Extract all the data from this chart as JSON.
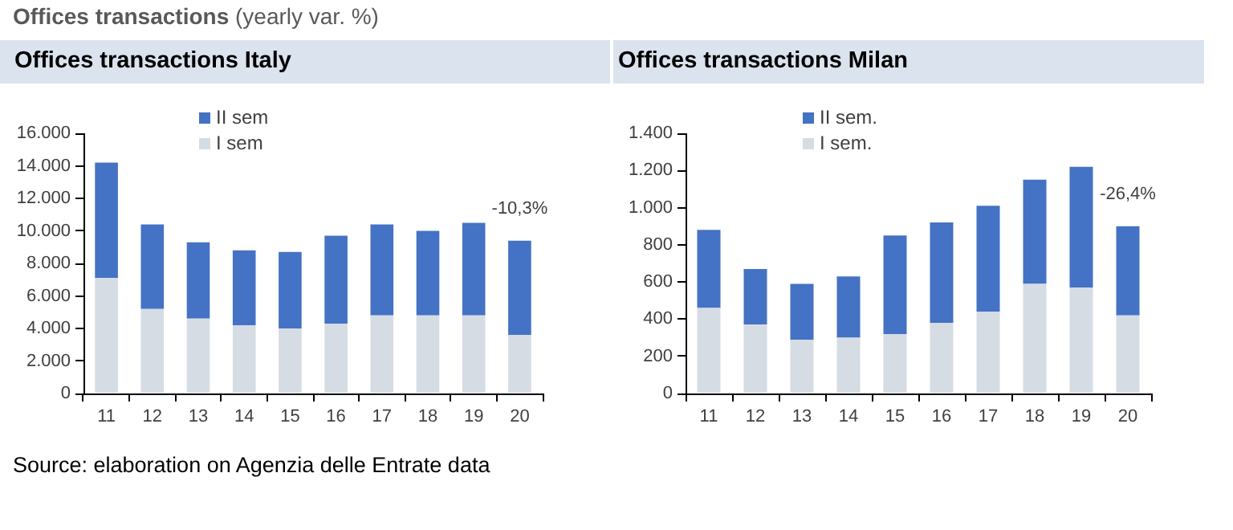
{
  "chart_data": [
    {
      "type": "other",
      "title": "Offices transactions",
      "subtitle": "(yearly var. %)",
      "annotations": [
        "Source: elaboration on Agenzia delle Entrate data"
      ]
    },
    {
      "type": "bar",
      "title": "Offices transactions Italy",
      "categories": [
        "11",
        "12",
        "13",
        "14",
        "15",
        "16",
        "17",
        "18",
        "19",
        "20"
      ],
      "stacked": true,
      "series": [
        {
          "name": "I sem",
          "color": "#d6dce4",
          "values": [
            7100,
            5200,
            4600,
            4200,
            4000,
            4300,
            4800,
            4800,
            4800,
            3600
          ]
        },
        {
          "name": "II sem",
          "color": "#4472c4",
          "values": [
            7100,
            5200,
            4700,
            4600,
            4700,
            5400,
            5600,
            5200,
            5700,
            5800
          ]
        }
      ],
      "ylim": [
        0,
        16000
      ],
      "yticks": [
        0,
        {
          "value": 2000,
          "label": "2.000"
        },
        {
          "value": 4000,
          "label": "4.000"
        },
        {
          "value": 6000,
          "label": "6.000"
        },
        {
          "value": 8000,
          "label": "8.000"
        },
        {
          "value": 10000,
          "label": "10.000"
        },
        {
          "value": 12000,
          "label": "12.000"
        },
        {
          "value": 14000,
          "label": "14.000"
        },
        {
          "value": 16000,
          "label": "16.000"
        }
      ],
      "legend": "top",
      "annotations": [
        "-10,3%"
      ]
    },
    {
      "type": "bar",
      "title": "Offices transactions Milan",
      "categories": [
        "11",
        "12",
        "13",
        "14",
        "15",
        "16",
        "17",
        "18",
        "19",
        "20"
      ],
      "stacked": true,
      "series": [
        {
          "name": "I sem.",
          "color": "#d6dce4",
          "values": [
            460,
            370,
            290,
            300,
            320,
            380,
            440,
            590,
            570,
            420
          ]
        },
        {
          "name": "II sem.",
          "color": "#4472c4",
          "values": [
            420,
            300,
            300,
            330,
            530,
            540,
            570,
            560,
            650,
            480
          ]
        }
      ],
      "ylim": [
        0,
        1400
      ],
      "yticks": [
        0,
        200,
        400,
        600,
        800,
        {
          "value": 1000,
          "label": "1.000"
        },
        {
          "value": 1200,
          "label": "1.200"
        },
        {
          "value": 1400,
          "label": "1.400"
        }
      ],
      "legend": "top",
      "annotations": [
        "-26,4%"
      ]
    }
  ]
}
